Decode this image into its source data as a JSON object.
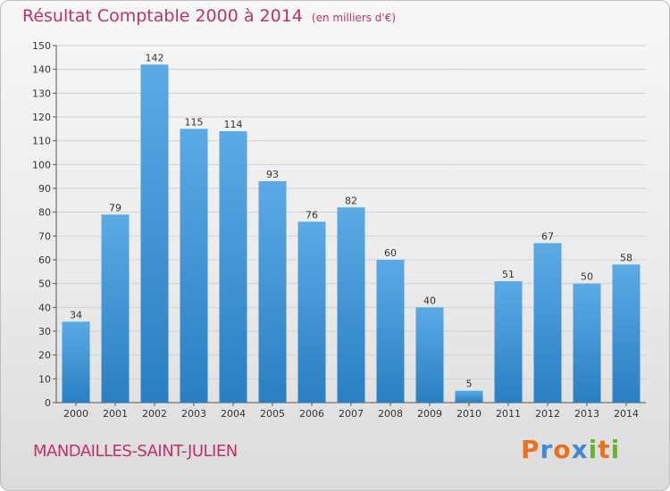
{
  "header": {
    "title": "Résultat Comptable 2000 à 2014",
    "unit": "(en milliers d'€)"
  },
  "footer": {
    "place": "MANDAILLES-SAINT-JULIEN",
    "logo": "Proxiti"
  },
  "colors": {
    "title": "#c0306a",
    "bar_top": "#5aaae6",
    "bar_bottom": "#2a7fc2",
    "grid": "#d0d0d0",
    "logo_letters": [
      "#e8731e",
      "#3c8ad8",
      "#e8731e",
      "#3c8ad8",
      "#6ab42d",
      "#e8731e",
      "#6ab42d"
    ]
  },
  "chart_data": {
    "type": "bar",
    "title": "Résultat Comptable 2000 à 2014",
    "subtitle": "(en milliers d'€)",
    "categories": [
      "2000",
      "2001",
      "2002",
      "2003",
      "2004",
      "2005",
      "2006",
      "2007",
      "2008",
      "2009",
      "2010",
      "2011",
      "2012",
      "2013",
      "2014"
    ],
    "values": [
      34,
      79,
      142,
      115,
      114,
      93,
      76,
      82,
      60,
      40,
      5,
      51,
      67,
      50,
      58
    ],
    "ylim": [
      0,
      150
    ],
    "yticks": [
      0,
      10,
      20,
      30,
      40,
      50,
      60,
      70,
      80,
      90,
      100,
      110,
      120,
      130,
      140,
      150
    ],
    "grid": true,
    "data_labels": true
  }
}
